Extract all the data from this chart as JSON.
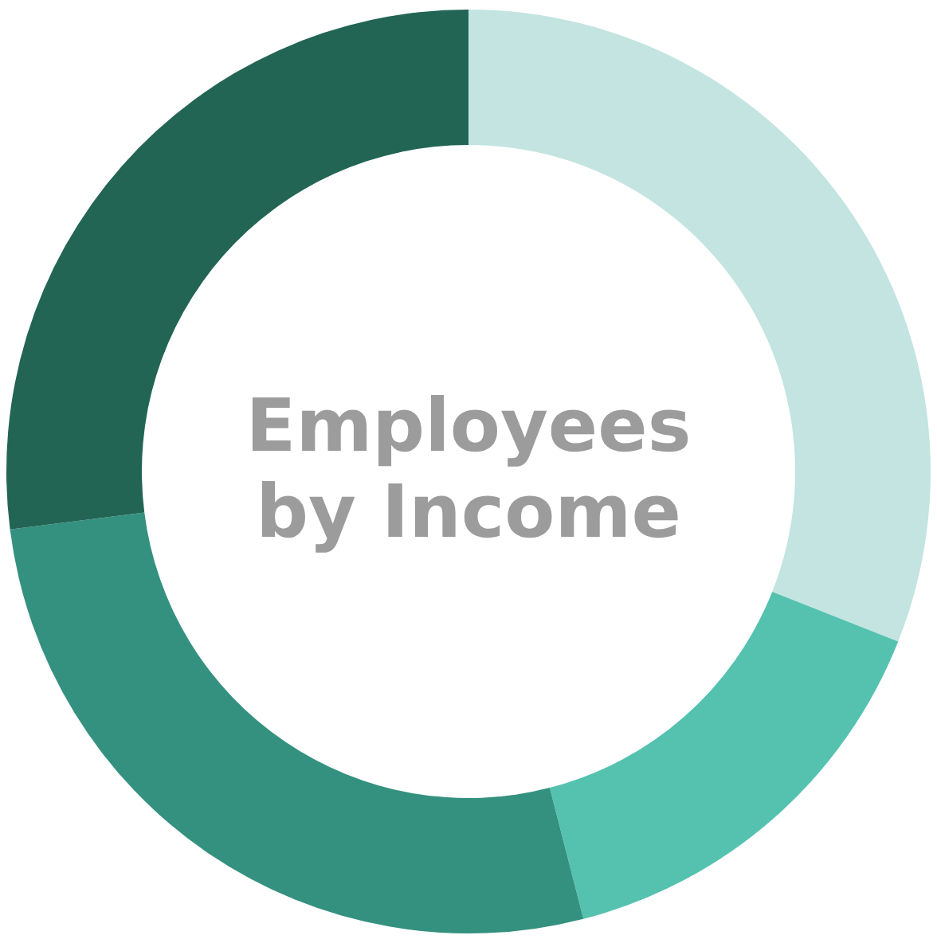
{
  "chart_data": {
    "type": "donut",
    "title": "Employees by Income",
    "categories": [
      null,
      null,
      null,
      null
    ],
    "values": [
      31,
      15,
      27,
      27
    ],
    "colors": [
      "#c3e4e0",
      "#55c2b0",
      "#35917f",
      "#236555"
    ]
  }
}
